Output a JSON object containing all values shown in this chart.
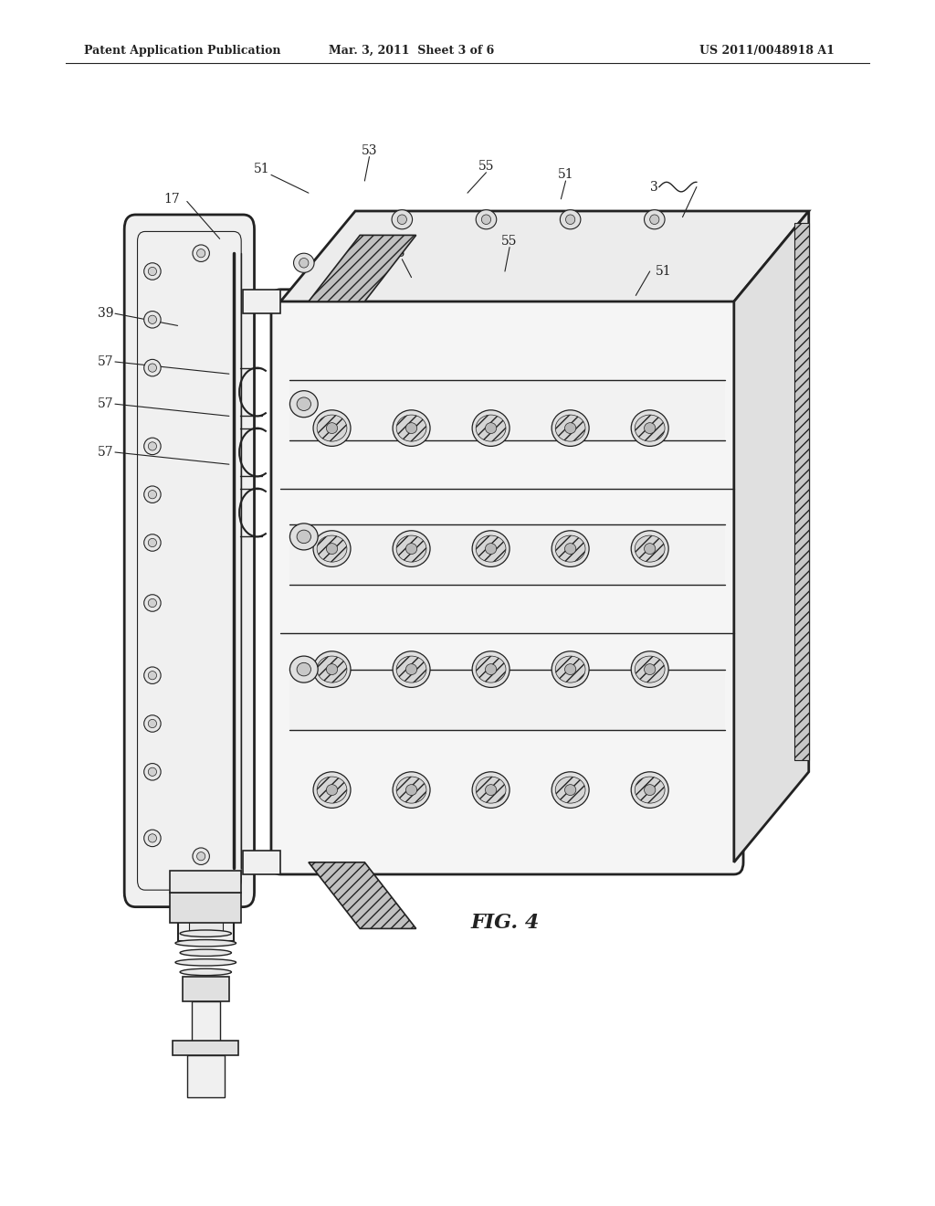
{
  "bg_color": "#ffffff",
  "header_left": "Patent Application Publication",
  "header_mid": "Mar. 3, 2011  Sheet 3 of 6",
  "header_right": "US 2011/0048918 A1",
  "fig_label": "FIG. 4",
  "line_color": "#222222",
  "light_gray": "#cccccc",
  "mid_gray": "#888888",
  "dark_gray": "#444444",
  "hatch_color": "#555555"
}
